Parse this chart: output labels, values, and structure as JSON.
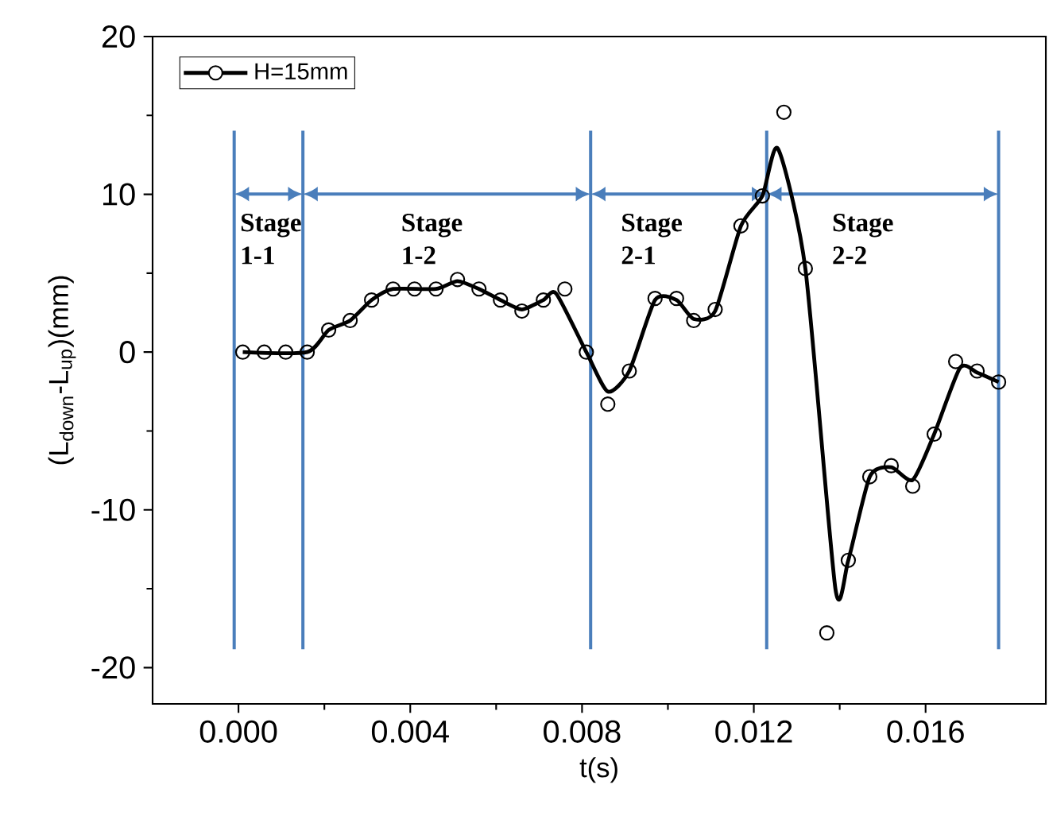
{
  "chart_data": {
    "type": "line",
    "xlabel": "t(s)",
    "ylabel": "(L$_{down}$-L$_{up}$)(mm)",
    "xlim": [
      -0.002,
      0.0188
    ],
    "ylim": [
      -22.3,
      20
    ],
    "xticks": [
      {
        "value": 0,
        "label": "0.000"
      },
      {
        "value": 0.004,
        "label": "0.004"
      },
      {
        "value": 0.008,
        "label": "0.008"
      },
      {
        "value": 0.012,
        "label": "0.012"
      },
      {
        "value": 0.016,
        "label": "0.016"
      }
    ],
    "yticks": [
      -20,
      -10,
      0,
      10,
      20
    ],
    "legend": "top left",
    "grid": false,
    "series": [
      {
        "type": "line",
        "color": "#000000",
        "marker": "none",
        "x": [
          0.0001,
          0.0016,
          0.0021,
          0.0026,
          0.0031,
          0.0036,
          0.0046,
          0.0051,
          0.0056,
          0.0061,
          0.0066,
          0.0071,
          0.0074,
          0.0081,
          0.0086,
          0.0091,
          0.0097,
          0.0102,
          0.0106,
          0.0111,
          0.0117,
          0.0122,
          0.01256,
          0.0132,
          0.0139,
          0.0142,
          0.0147,
          0.0152,
          0.0157,
          0.0162,
          0.0168,
          0.0172,
          0.0177
        ],
        "values": [
          0,
          0,
          1.4,
          2.0,
          3.3,
          4.0,
          4.0,
          4.5,
          4.0,
          3.3,
          2.7,
          3.3,
          3.7,
          0,
          -2.5,
          -1.2,
          3.3,
          3.3,
          2.1,
          2.6,
          8.0,
          9.9,
          12.9,
          5.3,
          -15.0,
          -13.2,
          -7.9,
          -7.3,
          -8.1,
          -5.2,
          -1.0,
          -1.3,
          -1.9
        ]
      },
      {
        "type": "scatter",
        "name": "H=15mm",
        "color": "#000000",
        "marker": "circle",
        "x": [
          0.0001,
          0.0006,
          0.0011,
          0.0016,
          0.0021,
          0.0026,
          0.0031,
          0.0036,
          0.0041,
          0.0046,
          0.0051,
          0.0056,
          0.0061,
          0.0066,
          0.0071,
          0.0076,
          0.0081,
          0.0086,
          0.0091,
          0.0097,
          0.0102,
          0.0106,
          0.0111,
          0.0117,
          0.0122,
          0.0127,
          0.0132,
          0.0137,
          0.0142,
          0.0147,
          0.0152,
          0.0157,
          0.0162,
          0.0167,
          0.0172,
          0.0177
        ],
        "values": [
          0,
          0,
          0,
          0,
          1.4,
          2.0,
          3.3,
          4.0,
          4.0,
          4.0,
          4.6,
          4.0,
          3.3,
          2.6,
          3.3,
          4.0,
          0,
          -3.3,
          -1.2,
          3.4,
          3.4,
          2.0,
          2.7,
          8.0,
          9.9,
          15.2,
          5.3,
          -17.8,
          -13.2,
          -7.9,
          -7.2,
          -8.5,
          -5.2,
          -0.6,
          -1.2,
          -1.9
        ]
      }
    ],
    "ref_lines": [
      {
        "axis": "x",
        "value": -0.0001,
        "color": "#4a7ebb"
      },
      {
        "axis": "x",
        "value": 0.0015,
        "color": "#4a7ebb"
      },
      {
        "axis": "x",
        "value": 0.0082,
        "color": "#4a7ebb"
      },
      {
        "axis": "x",
        "value": 0.0123,
        "color": "#4a7ebb"
      },
      {
        "axis": "x",
        "value": 0.0177,
        "color": "#4a7ebb"
      }
    ],
    "annotations": [
      "Stage 1-1",
      "Stage 1-2",
      "Stage 2-1",
      "Stage 2-2"
    ]
  }
}
